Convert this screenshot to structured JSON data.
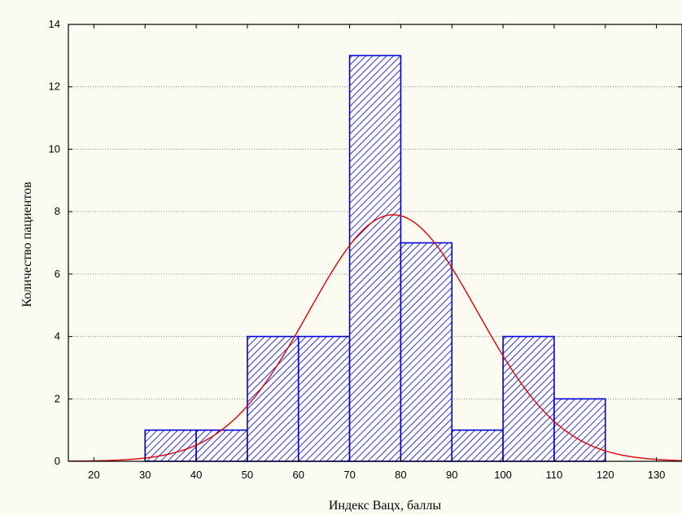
{
  "chart_data": {
    "type": "bar",
    "subtype": "histogram",
    "xlabel": "Индекс Вацх, баллы",
    "ylabel": "Количество пациентов",
    "xlim": [
      15,
      135
    ],
    "ylim": [
      0,
      14
    ],
    "x_ticks": [
      20,
      30,
      40,
      50,
      60,
      70,
      80,
      90,
      100,
      110,
      120,
      130
    ],
    "y_ticks": [
      0,
      2,
      4,
      6,
      8,
      10,
      12,
      14
    ],
    "grid": "horizontal dotted",
    "bins": [
      {
        "from": 30,
        "to": 40,
        "count": 1
      },
      {
        "from": 40,
        "to": 50,
        "count": 1
      },
      {
        "from": 50,
        "to": 60,
        "count": 4
      },
      {
        "from": 60,
        "to": 70,
        "count": 4
      },
      {
        "from": 70,
        "to": 80,
        "count": 13
      },
      {
        "from": 80,
        "to": 90,
        "count": 7
      },
      {
        "from": 90,
        "to": 100,
        "count": 1
      },
      {
        "from": 100,
        "to": 110,
        "count": 4
      },
      {
        "from": 110,
        "to": 120,
        "count": 2
      }
    ],
    "fit_curve": {
      "type": "normal",
      "mean": 78.5,
      "sd": 16.5,
      "peak": 7.9
    },
    "colors": {
      "bar_stroke": "#0000dd",
      "hatch": "#0000dd",
      "curve": "#e00000",
      "frame": "#000000",
      "grid": "#888888"
    }
  }
}
